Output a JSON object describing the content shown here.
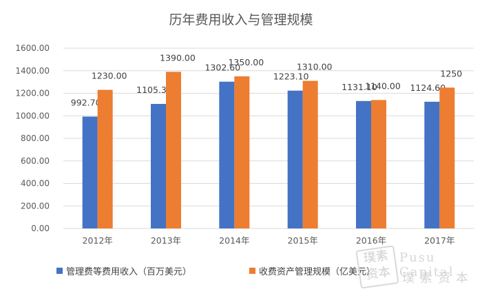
{
  "chart_data": {
    "type": "bar",
    "title": "历年费用收入与管理规模",
    "categories": [
      "2012年",
      "2013年",
      "2014年",
      "2015年",
      "2016年",
      "2017年"
    ],
    "series": [
      {
        "name": "管理费等费用收入（百万美元）",
        "color": "#4472c4",
        "values": [
          992.7,
          1105.3,
          1302.6,
          1223.1,
          1131.1,
          1124.6
        ],
        "labels": [
          "992.70",
          "1105.30",
          "1302.60",
          "1223.10",
          "1131.10",
          "1124.60"
        ]
      },
      {
        "name": "收费资产管理规模（亿美元）",
        "color": "#ed7d31",
        "values": [
          1230,
          1390,
          1350,
          1310,
          1140,
          1250
        ],
        "labels": [
          "1230.00",
          "1390.00",
          "1350.00",
          "1310.00",
          "1140.00",
          "1250"
        ]
      }
    ],
    "ylim": [
      0,
      1600
    ],
    "yticks": [
      "0.00",
      "200.00",
      "400.00",
      "600.00",
      "800.00",
      "1000.00",
      "1200.00",
      "1400.00",
      "1600.00"
    ],
    "grid": true,
    "legend_position": "bottom"
  },
  "watermark": {
    "text": "Pusu Capital",
    "sub": "璞素资本",
    "seal": "璞素资本"
  }
}
